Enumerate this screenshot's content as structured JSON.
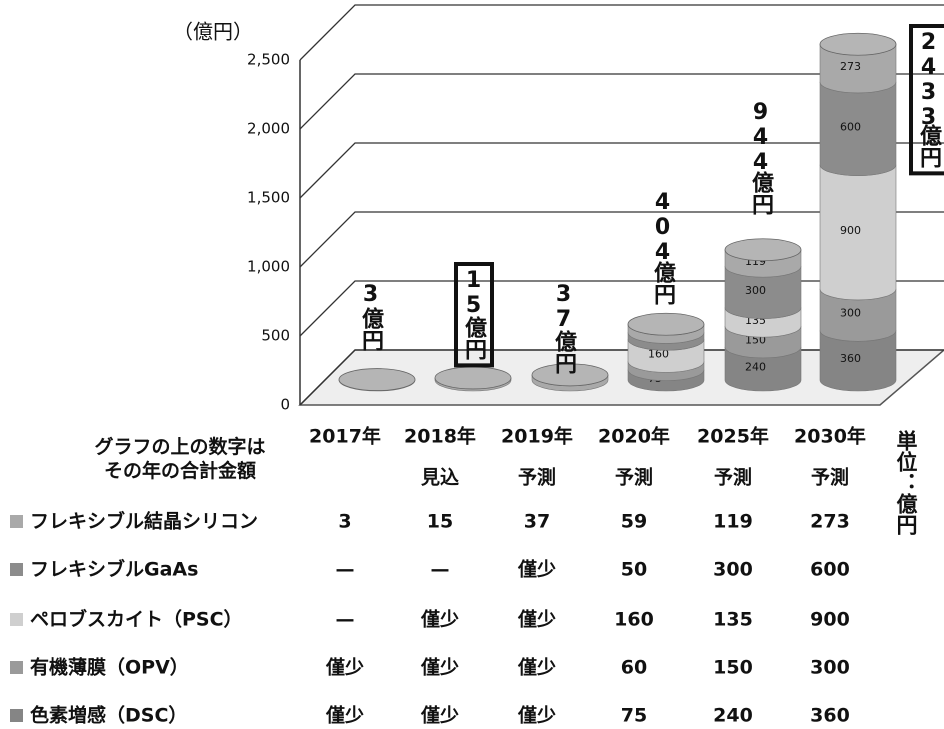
{
  "chart_data": {
    "type": "bar",
    "stacked": true,
    "y_axis_label": "（億円）",
    "categories": [
      "2017年",
      "2018年",
      "2019年",
      "2020年",
      "2025年",
      "2030年"
    ],
    "category_notes": [
      null,
      "見込",
      "予測",
      "予測",
      "予測",
      "予測"
    ],
    "ylim": [
      0,
      2500
    ],
    "yticks": [
      0,
      500,
      {
        "value": 1000,
        "label": "1,000"
      },
      {
        "value": 1500,
        "label": "1,500"
      },
      {
        "value": 2000,
        "label": "2,000"
      },
      {
        "value": 2500,
        "label": "2,500"
      }
    ],
    "grid": true,
    "totals": [
      3,
      15,
      37,
      404,
      944,
      2433
    ],
    "totals_unit": "億円",
    "boxed_totals": [
      false,
      true,
      false,
      false,
      false,
      true
    ],
    "table_note": "グラフの上の数字は その年の合計金額",
    "unit_note": "単位：億円",
    "series": [
      {
        "name": "フレキシブル結晶シリコン",
        "color": "#a9a9a9",
        "values": [
          3,
          15,
          37,
          59,
          119,
          273
        ]
      },
      {
        "name": "フレキシブルGaAs",
        "color": "#8c8c8c",
        "values": [
          null,
          null,
          null,
          50,
          300,
          600
        ],
        "value_labels": [
          "—",
          "—",
          "僅少",
          null,
          null,
          null
        ]
      },
      {
        "name": "ペロブスカイト（PSC）",
        "color": "#cfcfcf",
        "values": [
          null,
          null,
          null,
          160,
          135,
          900
        ],
        "value_labels": [
          "—",
          "僅少",
          "僅少",
          null,
          null,
          null
        ]
      },
      {
        "name": "有機薄膜（OPV）",
        "color": "#9a9a9a",
        "values": [
          null,
          null,
          null,
          60,
          150,
          300
        ],
        "value_labels": [
          "僅少",
          "僅少",
          "僅少",
          null,
          null,
          null
        ]
      },
      {
        "name": "色素増感（DSC）",
        "color": "#858585",
        "values": [
          null,
          null,
          null,
          75,
          240,
          360
        ],
        "value_labels": [
          "僅少",
          "僅少",
          "僅少",
          null,
          null,
          null
        ]
      }
    ]
  }
}
